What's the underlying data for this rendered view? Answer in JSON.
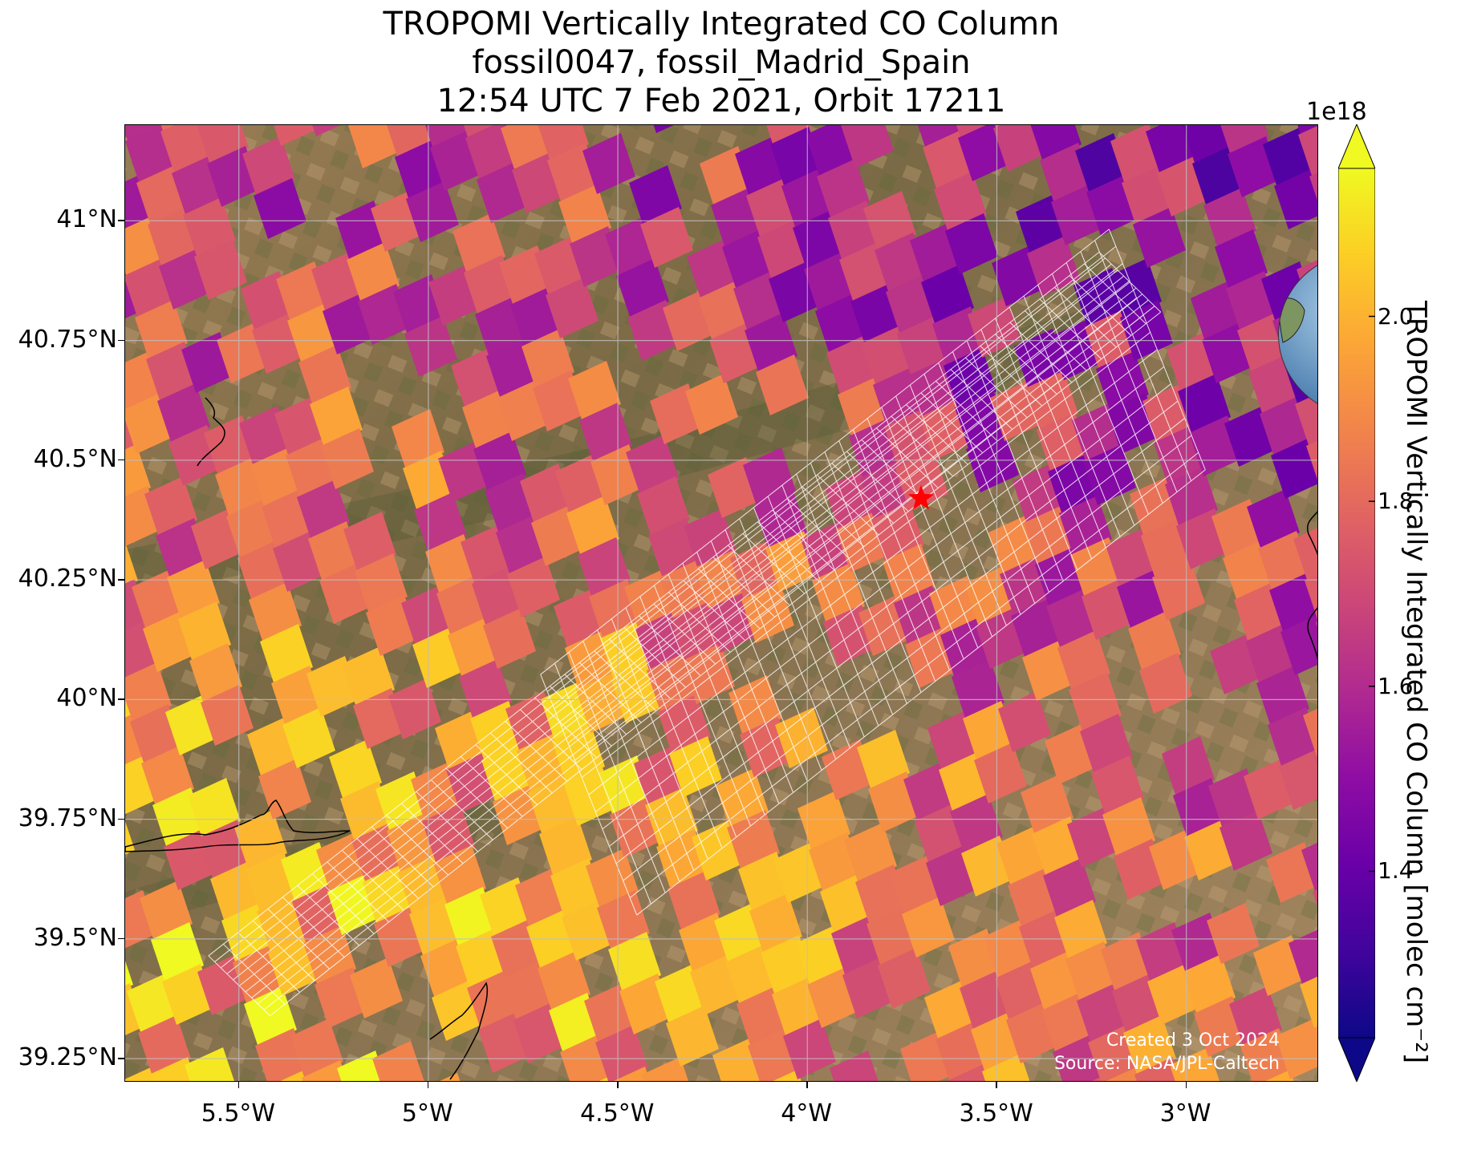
{
  "title": {
    "line1": "TROPOMI Vertically Integrated CO Column",
    "line2": "fossil0047, fossil_Madrid_Spain",
    "line3": "12:54 UTC 7 Feb 2021, Orbit 17211"
  },
  "map": {
    "lon_range": [
      -5.8,
      -2.65
    ],
    "lat_range": [
      39.2,
      41.2
    ],
    "lat_ticks": [
      "41°N",
      "40.75°N",
      "40.5°N",
      "40.25°N",
      "40°N",
      "39.75°N",
      "39.5°N",
      "39.25°N"
    ],
    "lat_tick_values": [
      41.0,
      40.75,
      40.5,
      40.25,
      40.0,
      39.75,
      39.5,
      39.25
    ],
    "lon_ticks": [
      "5.5°W",
      "5°W",
      "4.5°W",
      "4°W",
      "3.5°W",
      "3°W"
    ],
    "lon_tick_values": [
      -5.5,
      -5.0,
      -4.5,
      -4.0,
      -3.5,
      -3.0
    ],
    "gridlines": true,
    "target_marker": {
      "lon": -3.7,
      "lat": 40.42,
      "symbol": "star",
      "color": "#ff0000"
    },
    "basemap": "satellite imagery",
    "inset_globe": {
      "placement": "top-right",
      "marker_color": "#ff0000"
    }
  },
  "credits": {
    "created": "Created 3 Oct 2024",
    "source": "Source: NASA/JPL-Caltech"
  },
  "colorbar": {
    "label": "TROPOMI Vertically Integrated CO Column [molec cm⁻²]",
    "scale_label": "1e18",
    "ticks": [
      "1.4",
      "1.6",
      "1.8",
      "2.0"
    ],
    "tick_values": [
      1.4,
      1.6,
      1.8,
      2.0
    ],
    "range": [
      1.22,
      2.16
    ],
    "extend": "both",
    "colormap": "plasma",
    "colors": [
      "#0d0887",
      "#41049d",
      "#6a00a8",
      "#8f0da4",
      "#b12a90",
      "#cc4778",
      "#e16462",
      "#f2844b",
      "#fca636",
      "#fcce25",
      "#f0f921"
    ]
  }
}
